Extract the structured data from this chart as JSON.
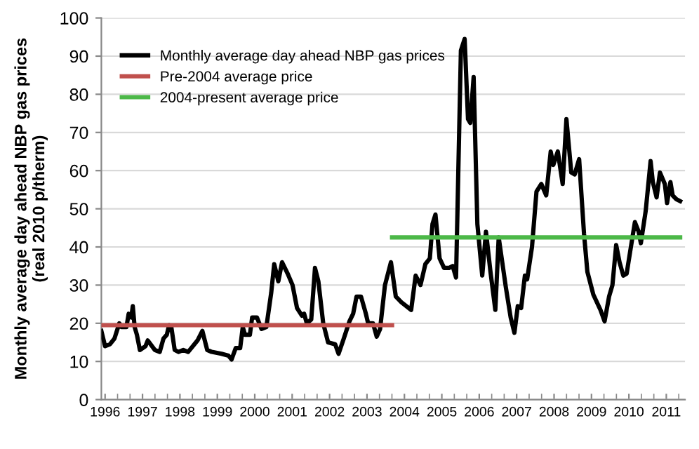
{
  "chart_data": {
    "type": "line",
    "ylabel": "Monthly average day ahead NBP gas prices\n(real 2010 p/therm)",
    "xlim": [
      1995.9,
      2011.5
    ],
    "xticks": [
      1996,
      1997,
      1998,
      1999,
      2000,
      2001,
      2002,
      2003,
      2004,
      2005,
      2006,
      2007,
      2008,
      2009,
      2010,
      2011
    ],
    "ylim": [
      0,
      100
    ],
    "yticks": [
      0,
      10,
      20,
      30,
      40,
      50,
      60,
      70,
      80,
      90,
      100
    ],
    "grid": "y",
    "legend": "top left",
    "marker": "none",
    "line_style": "solid",
    "series": [
      {
        "name": "Monthly average day ahead NBP gas prices",
        "color": "#000000",
        "x": [
          1995.9,
          1996.0,
          1996.13,
          1996.25,
          1996.38,
          1996.44,
          1996.57,
          1996.63,
          1996.7,
          1996.74,
          1996.79,
          1996.85,
          1996.93,
          1997.08,
          1997.14,
          1997.33,
          1997.46,
          1997.56,
          1997.65,
          1997.71,
          1997.77,
          1997.86,
          1997.96,
          1998.09,
          1998.22,
          1998.47,
          1998.6,
          1998.73,
          1998.85,
          1999.11,
          1999.3,
          1999.38,
          1999.49,
          1999.61,
          1999.68,
          1999.74,
          1999.87,
          1999.93,
          2000.06,
          2000.18,
          2000.31,
          2000.44,
          2000.52,
          2000.63,
          2000.73,
          2000.88,
          2001.01,
          2001.13,
          2001.26,
          2001.32,
          2001.39,
          2001.51,
          2001.61,
          2001.7,
          2001.83,
          2001.96,
          2002.15,
          2002.24,
          2002.38,
          2002.53,
          2002.63,
          2002.72,
          2002.84,
          2002.97,
          2003.03,
          2003.16,
          2003.26,
          2003.35,
          2003.48,
          2003.64,
          2003.77,
          2003.92,
          2004.18,
          2004.3,
          2004.43,
          2004.56,
          2004.68,
          2004.75,
          2004.83,
          2004.94,
          2005.06,
          2005.19,
          2005.29,
          2005.38,
          2005.51,
          2005.61,
          2005.7,
          2005.76,
          2005.85,
          2005.95,
          2006.08,
          2006.18,
          2006.3,
          2006.43,
          2006.52,
          2006.71,
          2006.84,
          2006.94,
          2007.03,
          2007.12,
          2007.22,
          2007.28,
          2007.41,
          2007.53,
          2007.66,
          2007.79,
          2007.91,
          2007.98,
          2008.1,
          2008.23,
          2008.33,
          2008.46,
          2008.55,
          2008.67,
          2008.8,
          2008.89,
          2009.05,
          2009.24,
          2009.35,
          2009.47,
          2009.56,
          2009.66,
          2009.75,
          2009.85,
          2009.94,
          2010.07,
          2010.16,
          2010.26,
          2010.32,
          2010.45,
          2010.58,
          2010.64,
          2010.74,
          2010.83,
          2010.96,
          2011.02,
          2011.11,
          2011.17,
          2011.27,
          2011.37
        ],
        "values": [
          18,
          14,
          14.5,
          16,
          20,
          19,
          19,
          22.5,
          21.5,
          24.5,
          19,
          17,
          13,
          14,
          15.5,
          13,
          12.5,
          16,
          17,
          19.5,
          19,
          13,
          12.5,
          13,
          12.5,
          15.5,
          18,
          13,
          12.5,
          12,
          11.5,
          10.5,
          13.5,
          13.5,
          19,
          17,
          17,
          21.5,
          21.5,
          18.5,
          19,
          28,
          35.5,
          31,
          36,
          33,
          30,
          24,
          22,
          22.5,
          20,
          21,
          34.5,
          31,
          20,
          15,
          14.5,
          12,
          16,
          20.5,
          22.5,
          27,
          27,
          22.5,
          20,
          20,
          16.5,
          18.5,
          30,
          36,
          27,
          25.5,
          23.5,
          32.5,
          30,
          35.5,
          37,
          46,
          48.5,
          37,
          34.5,
          34.5,
          35,
          32,
          91.5,
          94.5,
          73.5,
          72.5,
          84.5,
          46,
          32.5,
          44,
          33.5,
          23.5,
          42.5,
          29.5,
          21.5,
          17.5,
          24.5,
          24,
          32.5,
          31.5,
          40,
          54.5,
          56.5,
          53.5,
          65,
          61.5,
          65,
          56.5,
          73.5,
          59.5,
          59,
          63,
          43.5,
          33.5,
          27.5,
          23.5,
          20.5,
          27,
          30,
          40.5,
          36,
          32.5,
          33,
          41,
          46.5,
          44,
          41,
          49.5,
          62.5,
          57,
          53,
          59.5,
          56.5,
          51.5,
          57,
          53.5,
          52.5,
          52
        ]
      },
      {
        "name": "Pre-2004 average price",
        "color": "#c0504d",
        "x": [
          1995.9,
          2003.67
        ],
        "values": [
          19.5,
          19.5
        ]
      },
      {
        "name": "2004-present average price",
        "color": "#4cb848",
        "x": [
          2003.67,
          2011.37
        ],
        "values": [
          42.5,
          42.5
        ]
      }
    ]
  }
}
